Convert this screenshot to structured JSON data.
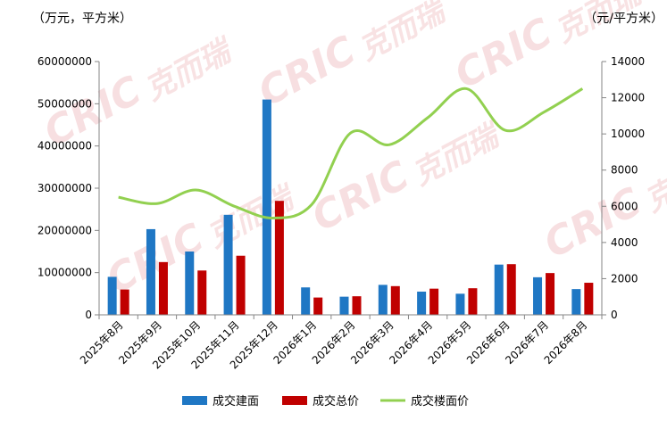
{
  "chart_data": {
    "type": "bar+line",
    "left_axis_unit": "（万元，平方米）",
    "right_axis_unit": "（元/平方米）",
    "categories": [
      "2025年8月",
      "2025年9月",
      "2025年10月",
      "2025年11月",
      "2025年12月",
      "2026年1月",
      "2026年2月",
      "2026年3月",
      "2026年4月",
      "2026年5月",
      "2026年6月",
      "2026年7月",
      "2026年8月"
    ],
    "series": [
      {
        "name": "成交建面",
        "type": "bar",
        "axis": "left",
        "color": "#1f77c4",
        "values": [
          9000000,
          20300000,
          15000000,
          23700000,
          51000000,
          6500000,
          4300000,
          7100000,
          5500000,
          5000000,
          11900000,
          8900000,
          6100000
        ]
      },
      {
        "name": "成交总价",
        "type": "bar",
        "axis": "left",
        "color": "#c00000",
        "values": [
          6000000,
          12500000,
          10500000,
          14000000,
          27000000,
          4100000,
          4400000,
          6800000,
          6200000,
          6300000,
          12000000,
          9900000,
          7600000
        ]
      },
      {
        "name": "成交楼面价",
        "type": "line",
        "axis": "right",
        "color": "#92d050",
        "values": [
          6500,
          6150,
          6900,
          6000,
          5350,
          6100,
          10050,
          9400,
          10900,
          12500,
          10200,
          11200,
          12500
        ]
      }
    ],
    "left_axis": {
      "min": 0,
      "max": 60000000,
      "ticks": [
        "0",
        "10000000",
        "20000000",
        "30000000",
        "40000000",
        "50000000",
        "60000000"
      ]
    },
    "right_axis": {
      "min": 0,
      "max": 14000,
      "ticks": [
        "0",
        "2000",
        "4000",
        "6000",
        "8000",
        "10000",
        "12000",
        "14000"
      ]
    },
    "grid": false,
    "legend_position": "bottom"
  },
  "watermark": {
    "latin": "CRIC",
    "chinese": "克而瑞",
    "color": "#f2c6c9"
  }
}
